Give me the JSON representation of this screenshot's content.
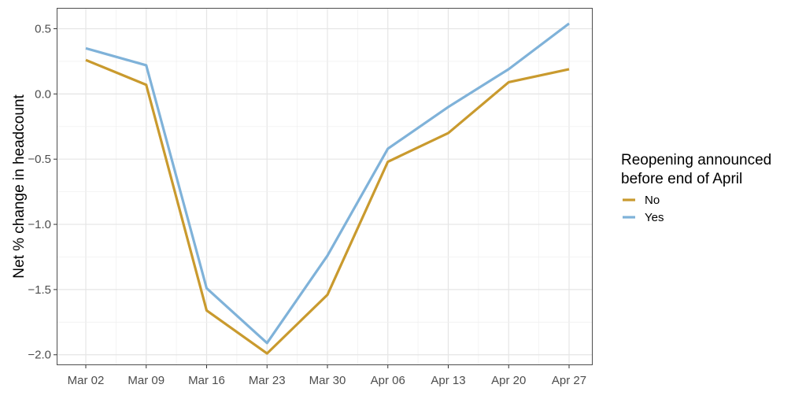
{
  "chart_data": {
    "type": "line",
    "x": [
      "Mar 02",
      "Mar 09",
      "Mar 16",
      "Mar 23",
      "Mar 30",
      "Apr 06",
      "Apr 13",
      "Apr 20",
      "Apr 27"
    ],
    "series": [
      {
        "name": "No",
        "color": "#c99a2e",
        "values": [
          0.26,
          0.07,
          -1.66,
          -1.99,
          -1.54,
          -0.52,
          -0.3,
          0.09,
          0.19
        ]
      },
      {
        "name": "Yes",
        "color": "#7fb2d9",
        "values": [
          0.35,
          0.22,
          -1.49,
          -1.91,
          -1.24,
          -0.42,
          -0.1,
          0.19,
          0.54
        ]
      }
    ],
    "title": "",
    "xlabel": "",
    "ylabel": "Net % change in headcount",
    "ylim": [
      -2.08,
      0.66
    ],
    "yticks": [
      0.5,
      0.0,
      -0.5,
      -1.0,
      -1.5,
      -2.0
    ],
    "ytick_labels": [
      "0.5",
      "0.0",
      "−0.5",
      "−1.0",
      "−1.5",
      "−2.0"
    ],
    "grid": true,
    "legend": {
      "title_line1": "Reopening announced",
      "title_line2": "before end of April",
      "placement": "right",
      "entries": [
        "No",
        "Yes"
      ]
    }
  }
}
